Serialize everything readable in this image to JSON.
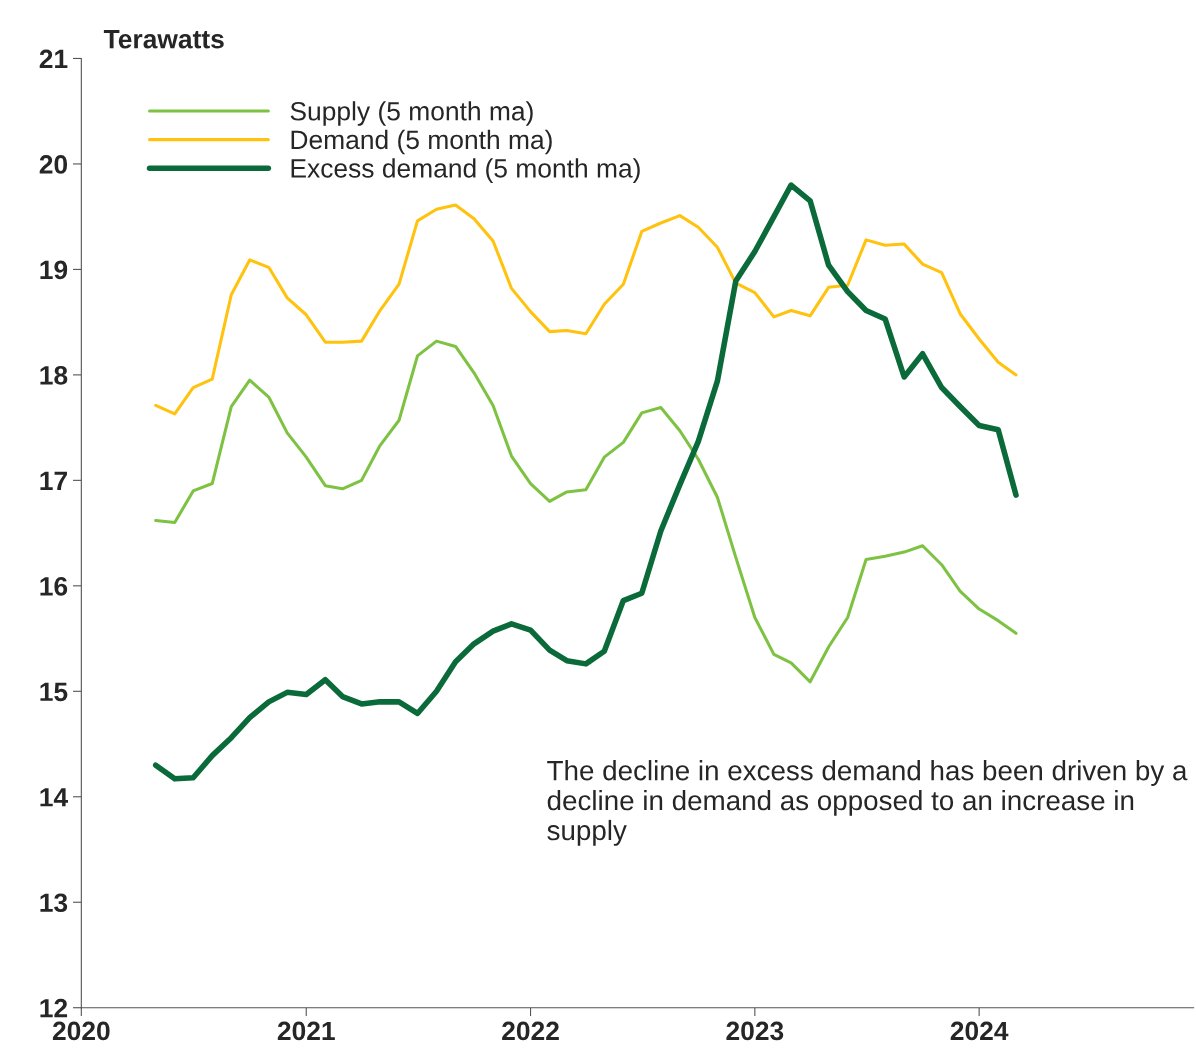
{
  "chart_data": {
    "type": "line",
    "ylabel": "Terawatts",
    "x": [
      "2020-05",
      "2020-06",
      "2020-07",
      "2020-08",
      "2020-09",
      "2020-10",
      "2020-11",
      "2020-12",
      "2021-01",
      "2021-02",
      "2021-03",
      "2021-04",
      "2021-05",
      "2021-06",
      "2021-07",
      "2021-08",
      "2021-09",
      "2021-10",
      "2021-11",
      "2021-12",
      "2022-01",
      "2022-02",
      "2022-03",
      "2022-04",
      "2022-05",
      "2022-06",
      "2022-07",
      "2022-08",
      "2022-09",
      "2022-10",
      "2022-11",
      "2022-12",
      "2023-01",
      "2023-02",
      "2023-03",
      "2023-04",
      "2023-05",
      "2023-06",
      "2023-07",
      "2023-08",
      "2023-09",
      "2023-10",
      "2023-11",
      "2023-12",
      "2024-01",
      "2024-02",
      "2024-03"
    ],
    "series": [
      {
        "name": "Supply (5 month ma)",
        "color": "#7dc242",
        "line_style": "solid",
        "values": [
          16.62,
          16.6,
          16.9,
          16.97,
          17.7,
          17.95,
          17.79,
          17.45,
          17.22,
          16.95,
          16.92,
          17.0,
          17.33,
          17.57,
          18.18,
          18.32,
          18.27,
          18.02,
          17.71,
          17.23,
          16.97,
          16.8,
          16.89,
          16.91,
          17.22,
          17.36,
          17.64,
          17.69,
          17.47,
          17.2,
          16.84,
          16.27,
          15.7,
          15.35,
          15.27,
          15.09,
          15.42,
          15.7,
          16.25,
          16.28,
          16.32,
          16.38,
          16.2,
          15.95,
          15.78,
          15.67,
          15.55
        ]
      },
      {
        "name": "Demand (5 month ma)",
        "color": "#ffc20e",
        "line_style": "solid",
        "values": [
          17.71,
          17.63,
          17.88,
          17.96,
          18.76,
          19.09,
          19.02,
          18.73,
          18.57,
          18.31,
          18.31,
          18.32,
          18.61,
          18.86,
          19.46,
          19.57,
          19.61,
          19.48,
          19.27,
          18.82,
          18.6,
          18.41,
          18.42,
          18.39,
          18.67,
          18.86,
          19.36,
          19.44,
          19.51,
          19.4,
          19.21,
          18.87,
          18.78,
          18.55,
          18.61,
          18.56,
          18.83,
          18.85,
          19.28,
          19.23,
          19.24,
          19.05,
          18.97,
          18.58,
          18.34,
          18.12,
          18.0
        ]
      },
      {
        "name": "Excess demand (5 month ma)",
        "color": "#0b6a3a",
        "line_style": "solid",
        "values": [
          14.3,
          14.17,
          14.18,
          14.39,
          14.56,
          14.75,
          14.9,
          14.99,
          14.97,
          15.11,
          14.95,
          14.88,
          14.9,
          14.9,
          14.79,
          15.0,
          15.28,
          15.45,
          15.57,
          15.64,
          15.58,
          15.39,
          15.29,
          15.26,
          15.38,
          15.86,
          15.93,
          16.52,
          16.96,
          17.37,
          17.94,
          18.89,
          19.17,
          19.5,
          19.8,
          19.65,
          19.04,
          18.79,
          18.61,
          18.53,
          17.98,
          18.2,
          17.88,
          17.7,
          17.52,
          17.48,
          16.86
        ]
      }
    ],
    "xlim": [
      "2020-01-01",
      "2024-12-15"
    ],
    "xticks": [
      {
        "value": "2020-01-01",
        "label": "2020"
      },
      {
        "value": "2021-01-01",
        "label": "2021"
      },
      {
        "value": "2022-01-01",
        "label": "2022"
      },
      {
        "value": "2023-01-01",
        "label": "2023"
      },
      {
        "value": "2024-01-01",
        "label": "2024"
      }
    ],
    "ylim": [
      12,
      21
    ],
    "yticks": [
      12,
      13,
      14,
      15,
      16,
      17,
      18,
      19,
      20,
      21
    ],
    "grid": false,
    "legend": "top left",
    "marker": "none",
    "annotations": [
      "The decline in excess demand has been driven by a decline in demand as opposed to an increase in supply"
    ]
  }
}
